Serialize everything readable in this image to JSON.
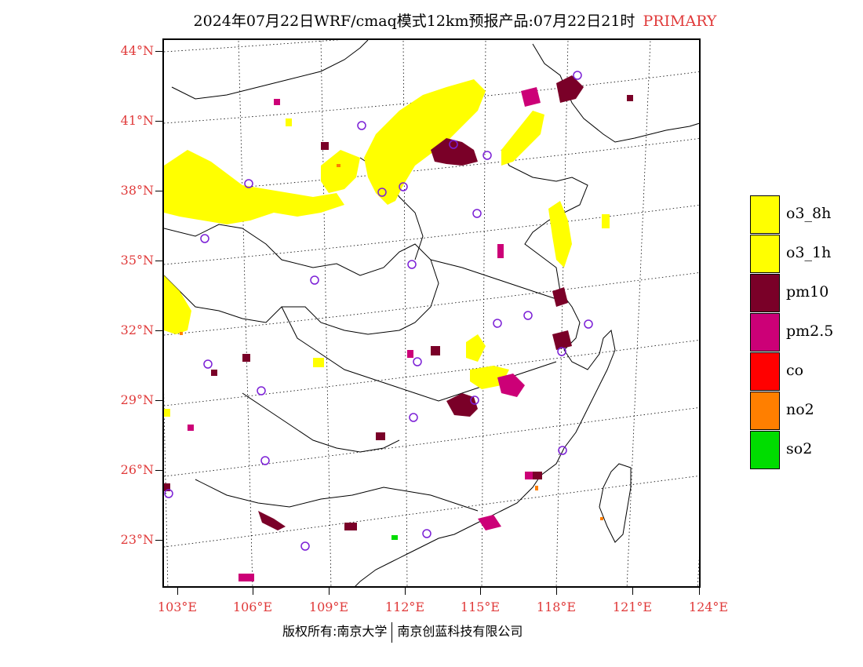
{
  "title": {
    "main": "2024年07月22日WRF/cmaq模式12km预报产品:07月22日21时",
    "tag": "PRIMARY"
  },
  "colors": {
    "axis_labels": "#e03a3a",
    "o3_8h": "#ffff00",
    "o3_1h": "#ffff00",
    "pm10": "#7a0028",
    "pm25": "#cc0077",
    "co": "#ff0000",
    "no2": "#ff7f00",
    "so2": "#00dd00",
    "station_marker": "#7b1fd6"
  },
  "latitude_labels": [
    "44°N",
    "41°N",
    "38°N",
    "35°N",
    "32°N",
    "29°N",
    "26°N",
    "23°N"
  ],
  "longitude_labels": [
    "103°E",
    "106°E",
    "109°E",
    "112°E",
    "115°E",
    "118°E",
    "121°E",
    "124°E"
  ],
  "legend": [
    {
      "label": "o3_8h",
      "color_key": "o3_8h"
    },
    {
      "label": "o3_1h",
      "color_key": "o3_1h"
    },
    {
      "label": "pm10",
      "color_key": "pm10"
    },
    {
      "label": "pm2.5",
      "color_key": "pm25"
    },
    {
      "label": "co",
      "color_key": "co"
    },
    {
      "label": "no2",
      "color_key": "no2"
    },
    {
      "label": "so2",
      "color_key": "so2"
    }
  ],
  "footer": {
    "left": "版权所有:南京大学",
    "right": "南京创蓝科技有限公司"
  }
}
